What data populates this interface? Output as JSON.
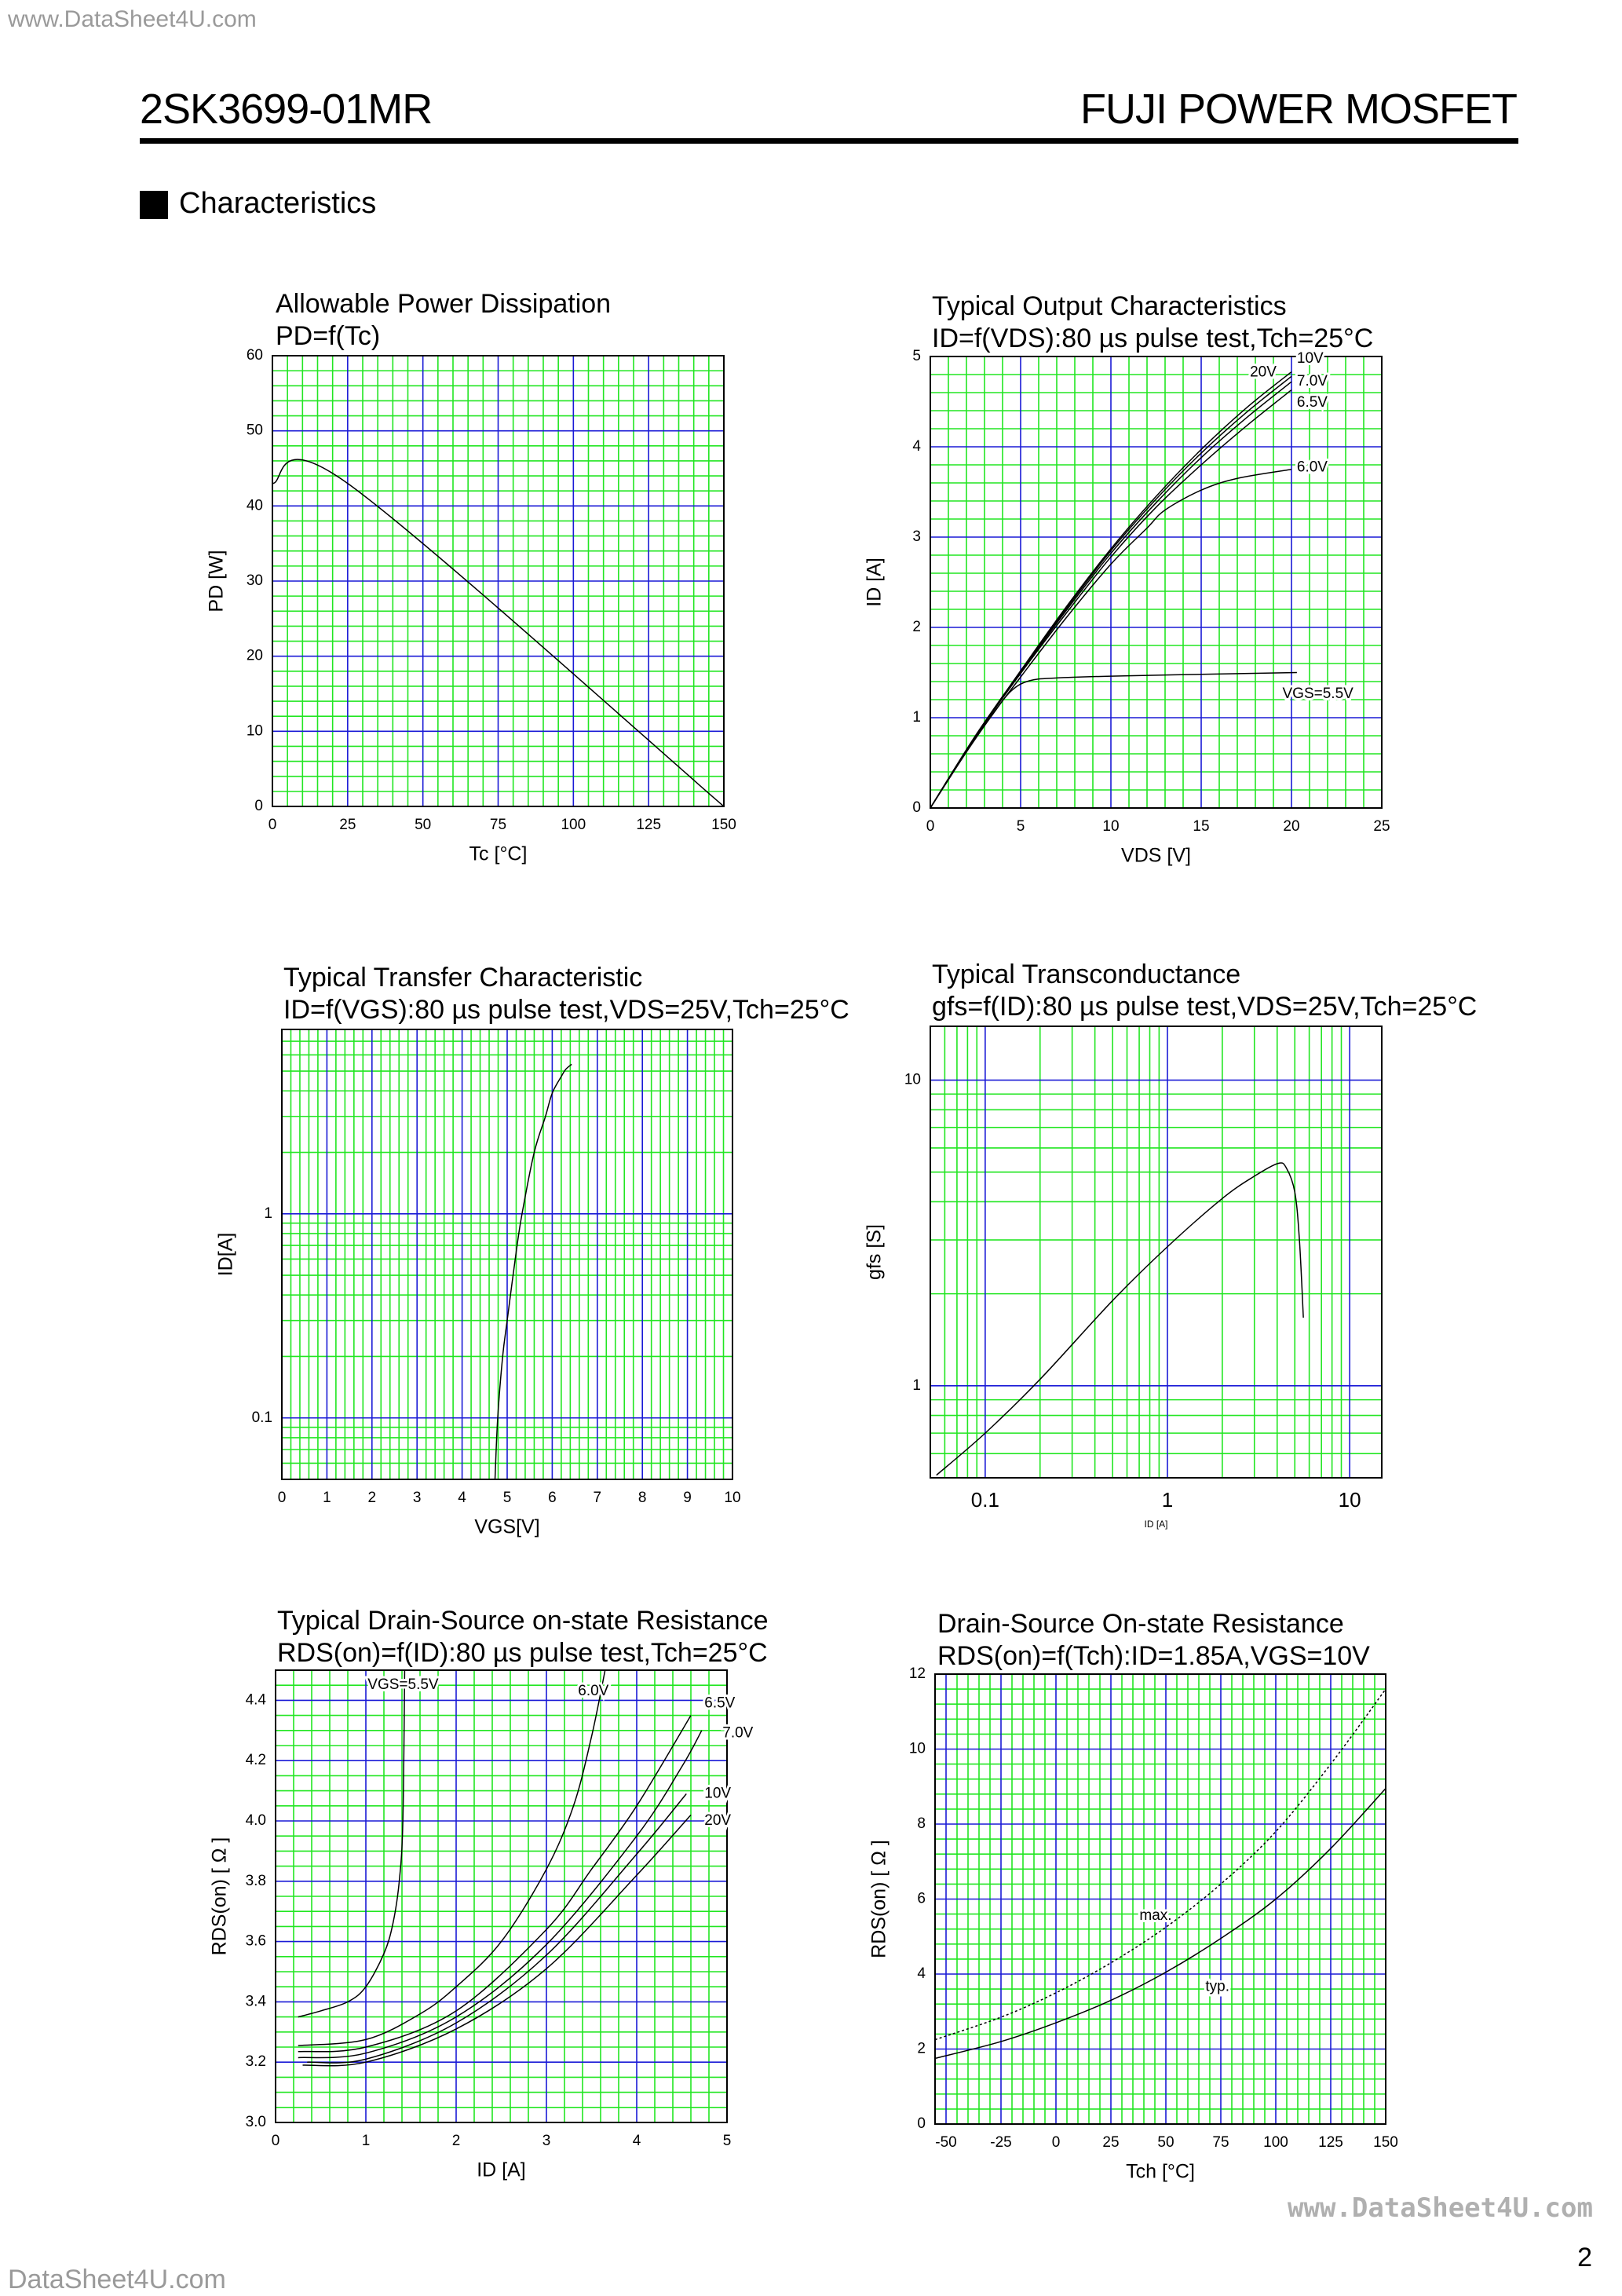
{
  "header": {
    "watermark_top": "www.DataSheet4U.com",
    "part_number": "2SK3699-01MR",
    "brand": "FUJI POWER MOSFET",
    "section_title": "Characteristics"
  },
  "footer": {
    "page_number": "2",
    "watermark_bottom": "DataSheet4U.com",
    "watermark_right": "www.DataSheet4U.com"
  },
  "colors": {
    "minor_grid": "#22e622",
    "major_grid": "#1a1ad6",
    "curve": "#000000"
  },
  "chart_data": [
    {
      "type": "line",
      "title": "Allowable Power Dissipation",
      "subtitle": "PD=f(Tc)",
      "xlabel": "Tc [°C]",
      "ylabel": "PD [W]",
      "xlim": [
        0,
        150
      ],
      "ylim": [
        0,
        60
      ],
      "xscale": "linear",
      "yscale": "linear",
      "xticks": [
        0,
        25,
        50,
        75,
        100,
        125,
        150
      ],
      "yticks": [
        0,
        10,
        20,
        30,
        40,
        50,
        60
      ],
      "xtick_labels": [
        "0",
        "25",
        "50",
        "75",
        "100",
        "125",
        "150"
      ],
      "ytick_labels": [
        "0",
        "10",
        "20",
        "30",
        "40",
        "50",
        "60"
      ],
      "grid": {
        "x_minor": 5,
        "x_major": 25,
        "y_minor": 2,
        "y_major": 10
      },
      "series": [
        {
          "x": [
            0,
            25,
            150
          ],
          "y": [
            43,
            43,
            0
          ]
        }
      ],
      "annotations": []
    },
    {
      "type": "line",
      "title": "Typical Output Characteristics",
      "subtitle": "ID=f(VDS):80 µs pulse test,Tch=25°C",
      "xlabel": "VDS [V]",
      "ylabel": "ID [A]",
      "xlim": [
        0,
        25
      ],
      "ylim": [
        0,
        5
      ],
      "xscale": "linear",
      "yscale": "linear",
      "xticks": [
        0,
        5,
        10,
        15,
        20,
        25
      ],
      "yticks": [
        0,
        1,
        2,
        3,
        4,
        5
      ],
      "xtick_labels": [
        "0",
        "5",
        "10",
        "15",
        "20",
        "25"
      ],
      "ytick_labels": [
        "0",
        "1",
        "2",
        "3",
        "4",
        "5"
      ],
      "grid": {
        "x_minor": 1,
        "x_major": 5,
        "y_minor": 0.2,
        "y_major": 1
      },
      "series": [
        {
          "name": "20V",
          "x": [
            0,
            2.5,
            5,
            7.5,
            10,
            12.5,
            15,
            17.5,
            20
          ],
          "y": [
            0,
            0.8,
            1.52,
            2.22,
            2.87,
            3.45,
            3.97,
            4.43,
            4.83
          ]
        },
        {
          "name": "10V",
          "x": [
            0,
            2.5,
            5,
            7.5,
            10,
            12.5,
            15,
            17.5,
            20
          ],
          "y": [
            0,
            0.8,
            1.51,
            2.2,
            2.85,
            3.42,
            3.93,
            4.38,
            4.78
          ]
        },
        {
          "name": "7.0V",
          "x": [
            0,
            2.5,
            5,
            7.5,
            10,
            12.5,
            15,
            17.5,
            20
          ],
          "y": [
            0,
            0.8,
            1.5,
            2.18,
            2.82,
            3.38,
            3.88,
            4.32,
            4.72
          ]
        },
        {
          "name": "6.5V",
          "x": [
            0,
            2.5,
            5,
            7.5,
            10,
            12.5,
            15,
            17.5,
            20
          ],
          "y": [
            0,
            0.79,
            1.49,
            2.15,
            2.78,
            3.33,
            3.8,
            4.23,
            4.63
          ]
        },
        {
          "name": "6.0V",
          "x": [
            0,
            2.5,
            5,
            7.5,
            10,
            12,
            13,
            15,
            17,
            20
          ],
          "y": [
            0,
            0.78,
            1.45,
            2.1,
            2.7,
            3.1,
            3.3,
            3.52,
            3.65,
            3.75
          ]
        },
        {
          "name": "VGS=5.5V",
          "x": [
            0,
            2,
            3.5,
            4.5,
            5.5,
            7,
            10,
            15,
            20.3
          ],
          "y": [
            0,
            0.62,
            1.05,
            1.3,
            1.41,
            1.44,
            1.46,
            1.48,
            1.5
          ]
        }
      ],
      "annotations": [
        {
          "text": "20V",
          "x": 17.7,
          "y": 4.82
        },
        {
          "text": "10V",
          "x": 20.3,
          "y": 4.93
        },
        {
          "text": "7.0V",
          "x": 20.3,
          "y": 4.72
        },
        {
          "text": "6.5V",
          "x": 20.3,
          "y": 4.53
        },
        {
          "text": "6.0V",
          "x": 20.3,
          "y": 3.77
        },
        {
          "text": "VGS=5.5V",
          "x": 19.5,
          "y": 1.26
        }
      ]
    },
    {
      "type": "line",
      "title": "Typical Transfer Characteristic",
      "subtitle": "ID=f(VGS):80 µs pulse test,VDS=25V,Tch=25°C",
      "xlabel": "VGS[V]",
      "ylabel": "ID[A]",
      "xlim": [
        0,
        10
      ],
      "ylim": [
        0.05,
        8
      ],
      "xscale": "linear",
      "yscale": "log",
      "xticks": [
        0,
        1,
        2,
        3,
        4,
        5,
        6,
        7,
        8,
        9,
        10
      ],
      "yticks": [
        0.1,
        1
      ],
      "xtick_labels": [
        "0",
        "1",
        "2",
        "3",
        "4",
        "5",
        "6",
        "7",
        "8",
        "9",
        "10"
      ],
      "ytick_labels": [
        "0.1",
        "1"
      ],
      "grid": {
        "x_minor": 0.2,
        "x_major": 1
      },
      "series": [
        {
          "x": [
            4.73,
            4.79,
            4.9,
            5.0,
            5.2,
            5.33,
            5.6,
            5.85,
            6.0,
            6.2,
            6.3,
            6.43
          ],
          "y": [
            0.05,
            0.1,
            0.2,
            0.3,
            0.65,
            1.0,
            2.0,
            3.0,
            3.9,
            4.7,
            5.1,
            5.4
          ]
        }
      ],
      "annotations": []
    },
    {
      "type": "line",
      "title": "Typical Transconductance",
      "subtitle": "gfs=f(ID):80 µs pulse test,VDS=25V,Tch=25°C",
      "xlabel": "ID [A]",
      "ylabel": "gfs [S]",
      "xlim": [
        0.05,
        15
      ],
      "ylim": [
        0.5,
        15
      ],
      "xscale": "log",
      "yscale": "log",
      "xticks": [
        0.1,
        1,
        10
      ],
      "yticks": [
        1,
        10
      ],
      "xtick_labels": [
        "0.1",
        "1",
        "10"
      ],
      "ytick_labels": [
        "1",
        "10"
      ],
      "grid": {},
      "series": [
        {
          "x": [
            0.054,
            0.1,
            0.2,
            0.5,
            1.0,
            2.0,
            3.0,
            4.05,
            4.5,
            5.0,
            5.3,
            5.57
          ],
          "y": [
            0.51,
            0.7,
            1.05,
            1.9,
            2.85,
            4.1,
            4.85,
            5.34,
            5.15,
            4.3,
            3.0,
            1.67
          ]
        }
      ],
      "annotations": []
    },
    {
      "type": "line",
      "title": "Typical Drain-Source on-state Resistance",
      "subtitle": "RDS(on)=f(ID):80  µs pulse test,Tch=25°C",
      "xlabel": "ID [A]",
      "ylabel": "RDS(on) [ Ω ]",
      "xlim": [
        0,
        5
      ],
      "ylim": [
        3.0,
        4.5
      ],
      "xscale": "linear",
      "yscale": "linear",
      "xticks": [
        0,
        1,
        2,
        3,
        4,
        5
      ],
      "yticks": [
        3.0,
        3.2,
        3.4,
        3.6,
        3.8,
        4.0,
        4.2,
        4.4
      ],
      "xtick_labels": [
        "0",
        "1",
        "2",
        "3",
        "4",
        "5"
      ],
      "ytick_labels": [
        "3.0",
        "3.2",
        "3.4",
        "3.6",
        "3.8",
        "4.0",
        "4.2",
        "4.4"
      ],
      "grid": {
        "x_minor": 0.2,
        "x_major": 1,
        "y_minor": 0.05,
        "y_major": 0.2
      },
      "series": [
        {
          "name": "VGS=5.5V",
          "x": [
            0.25,
            0.5,
            0.8,
            1.0,
            1.2,
            1.3,
            1.37,
            1.41,
            1.43
          ],
          "y": [
            3.35,
            3.37,
            3.4,
            3.45,
            3.56,
            3.66,
            3.8,
            4.0,
            4.5
          ]
        },
        {
          "name": "6.0V",
          "x": [
            0.25,
            1.0,
            1.6,
            2.0,
            2.5,
            3.0,
            3.3,
            3.5,
            3.65
          ],
          "y": [
            3.255,
            3.275,
            3.36,
            3.45,
            3.6,
            3.84,
            4.05,
            4.28,
            4.5
          ]
        },
        {
          "name": "6.5V",
          "x": [
            0.25,
            1.0,
            2.0,
            3.0,
            3.5,
            4.0,
            4.6
          ],
          "y": [
            3.235,
            3.25,
            3.37,
            3.64,
            3.84,
            4.05,
            4.35
          ]
        },
        {
          "name": "7.0V",
          "x": [
            0.25,
            1.0,
            2.0,
            3.0,
            4.0,
            4.5,
            4.72
          ],
          "y": [
            3.215,
            3.23,
            3.35,
            3.59,
            3.95,
            4.18,
            4.3
          ]
        },
        {
          "name": "10V",
          "x": [
            0.35,
            1.0,
            2.0,
            3.0,
            4.0,
            4.55
          ],
          "y": [
            3.2,
            3.21,
            3.33,
            3.555,
            3.89,
            4.09
          ]
        },
        {
          "name": "20V",
          "x": [
            0.3,
            1.0,
            2.0,
            3.0,
            4.0,
            4.6
          ],
          "y": [
            3.19,
            3.2,
            3.31,
            3.51,
            3.82,
            4.02
          ]
        }
      ],
      "annotations": [
        {
          "text": "VGS=5.5V",
          "x": 1.02,
          "y": 4.45
        },
        {
          "text": "6.0V",
          "x": 3.35,
          "y": 4.43
        },
        {
          "text": "6.5V",
          "x": 4.75,
          "y": 4.39
        },
        {
          "text": "7.0V",
          "x": 4.95,
          "y": 4.29
        },
        {
          "text": "10V",
          "x": 4.75,
          "y": 4.09
        },
        {
          "text": "20V",
          "x": 4.75,
          "y": 4.0
        }
      ]
    },
    {
      "type": "line",
      "title": "Drain-Source On-state Resistance",
      "subtitle": "RDS(on)=f(Tch):ID=1.85A,VGS=10V",
      "xlabel": "Tch [°C]",
      "ylabel": "RDS(on) [ Ω ]",
      "xlim": [
        -55,
        150
      ],
      "ylim": [
        0,
        12
      ],
      "xscale": "linear",
      "yscale": "linear",
      "xticks": [
        -50,
        -25,
        0,
        25,
        50,
        75,
        100,
        125,
        150
      ],
      "yticks": [
        0,
        2,
        4,
        6,
        8,
        10,
        12
      ],
      "xtick_labels": [
        "-50",
        "-25",
        "0",
        "25",
        "50",
        "75",
        "100",
        "125",
        "150"
      ],
      "ytick_labels": [
        "0",
        "2",
        "4",
        "6",
        "8",
        "10",
        "12"
      ],
      "grid": {
        "x_minor": 5,
        "x_major": 25,
        "x_origin": -50,
        "y_minor": 0.4,
        "y_major": 2
      },
      "series": [
        {
          "name": "typ.",
          "dashed": false,
          "x": [
            -55,
            -25,
            0,
            25,
            50,
            75,
            100,
            125,
            150
          ],
          "y": [
            1.75,
            2.2,
            2.7,
            3.3,
            4.05,
            4.95,
            6.0,
            7.35,
            8.95
          ]
        },
        {
          "name": "max.",
          "dashed": true,
          "x": [
            -55,
            -25,
            0,
            25,
            50,
            75,
            100,
            125,
            150
          ],
          "y": [
            2.25,
            2.85,
            3.5,
            4.3,
            5.25,
            6.4,
            7.8,
            9.6,
            11.6
          ]
        }
      ],
      "annotations": [
        {
          "text": "max.",
          "x": 38,
          "y": 5.55
        },
        {
          "text": "typ.",
          "x": 68,
          "y": 3.65
        }
      ]
    }
  ]
}
